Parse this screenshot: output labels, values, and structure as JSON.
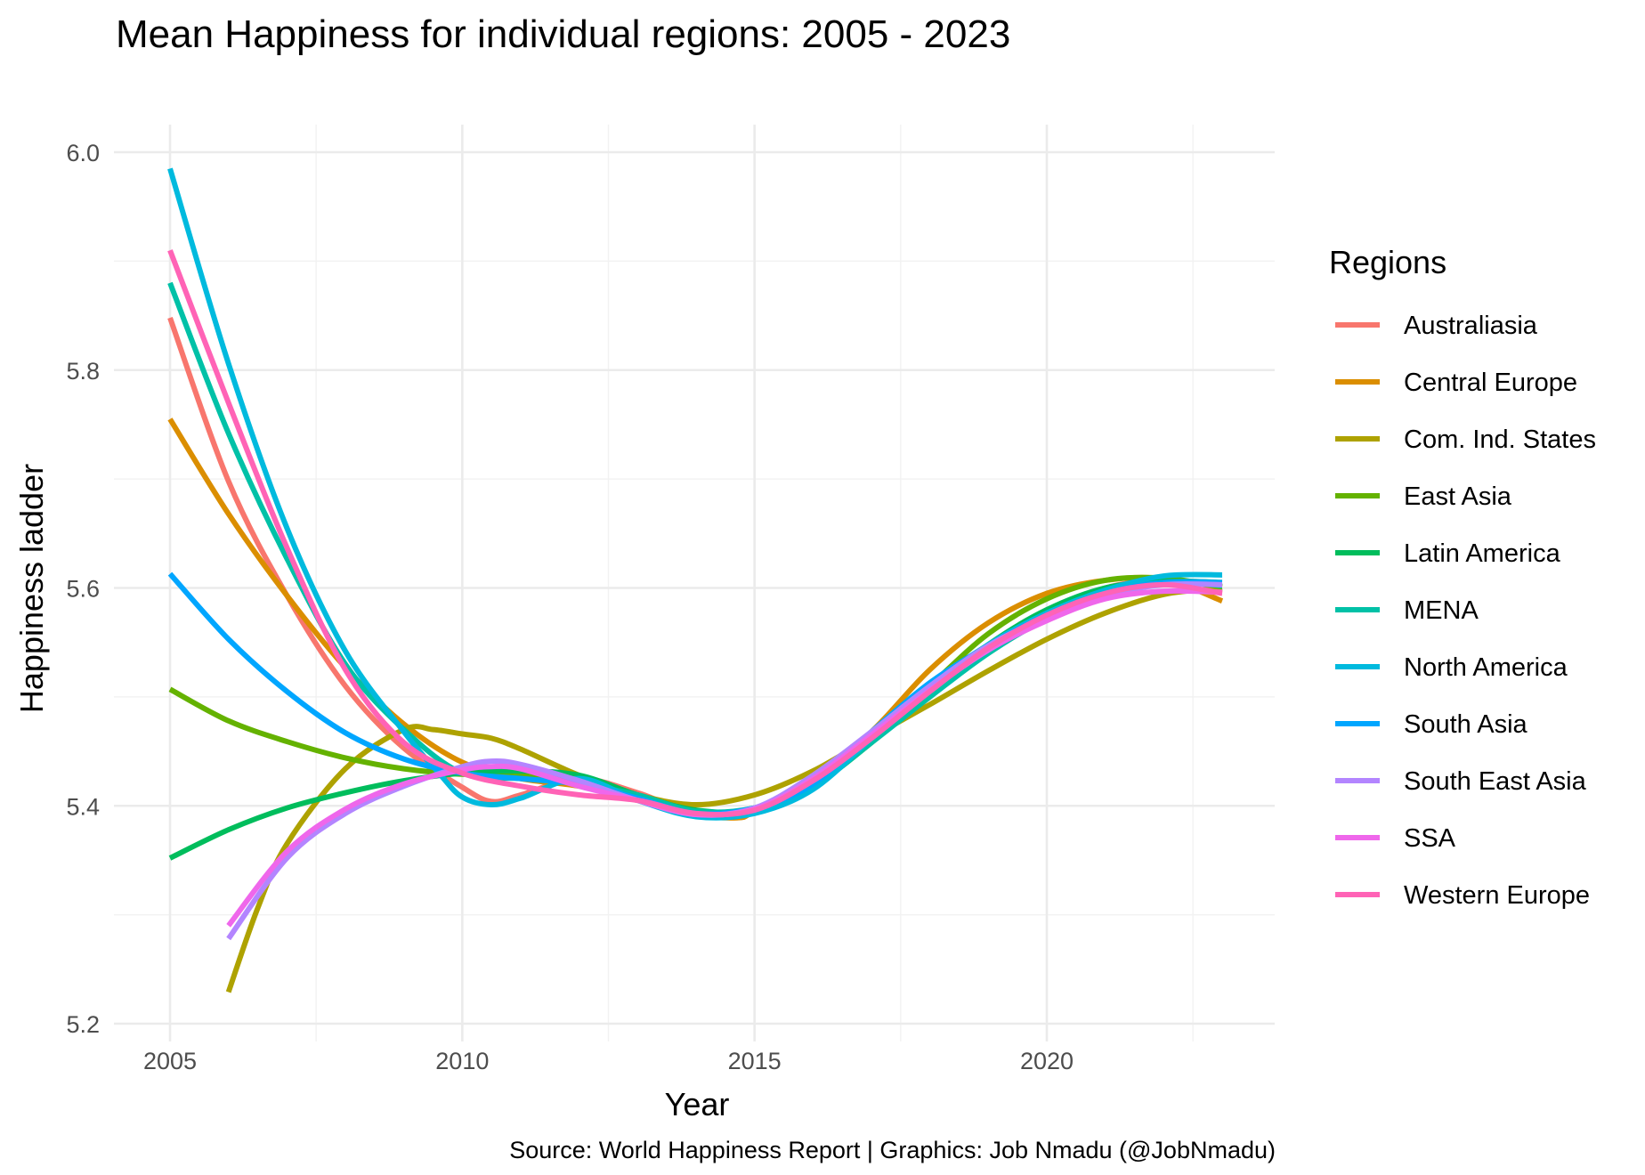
{
  "chart_data": {
    "type": "line",
    "title": "Mean Happiness for individual regions: 2005 - 2023",
    "xlabel": "Year",
    "ylabel": "Happiness ladder",
    "caption": "Source: World Happiness Report  |  Graphics: Job Nmadu (@JobNmadu)",
    "legend_title": "Regions",
    "legend_position": "right",
    "grid": true,
    "xlim": [
      2004.8,
      2023.3
    ],
    "ylim": [
      5.2,
      6.03
    ],
    "x_ticks": [
      2005,
      2010,
      2015,
      2020
    ],
    "y_ticks": [
      5.2,
      5.4,
      5.6,
      5.8,
      6.0
    ],
    "y_tick_labels": [
      "5.2",
      "5.4",
      "5.6",
      "5.8",
      "6.0"
    ],
    "series": [
      {
        "name": "Australiasia",
        "color": "#F8766D",
        "x": [
          2005,
          2006,
          2007,
          2008,
          2009,
          2010,
          2010.5,
          2011,
          2012,
          2013,
          2014,
          2015,
          2016,
          2017,
          2018,
          2019,
          2020,
          2021,
          2022,
          2023
        ],
        "y": [
          5.848,
          5.698,
          5.593,
          5.51,
          5.453,
          5.417,
          5.404,
          5.41,
          5.425,
          5.412,
          5.393,
          5.398,
          5.42,
          5.46,
          5.5,
          5.545,
          5.578,
          5.6,
          5.607,
          5.601
        ]
      },
      {
        "name": "Central Europe",
        "color": "#DB8E00",
        "x": [
          2005,
          2006,
          2007,
          2008,
          2009,
          2010,
          2011,
          2012,
          2013,
          2014,
          2014.7,
          2015,
          2016,
          2017,
          2018,
          2019,
          2020,
          2021,
          2022,
          2023
        ],
        "y": [
          5.755,
          5.668,
          5.593,
          5.527,
          5.475,
          5.44,
          5.425,
          5.418,
          5.405,
          5.392,
          5.389,
          5.395,
          5.425,
          5.468,
          5.525,
          5.568,
          5.595,
          5.607,
          5.608,
          5.588
        ]
      },
      {
        "name": "Com. Ind. States",
        "color": "#AEA200",
        "x": [
          2006,
          2006.5,
          2007,
          2008,
          2009,
          2009.5,
          2010,
          2010.5,
          2011,
          2012,
          2013,
          2014,
          2015,
          2016,
          2017,
          2018,
          2019,
          2020,
          2021,
          2022,
          2023
        ],
        "y": [
          5.229,
          5.306,
          5.365,
          5.434,
          5.47,
          5.47,
          5.466,
          5.462,
          5.452,
          5.428,
          5.41,
          5.401,
          5.41,
          5.432,
          5.463,
          5.493,
          5.524,
          5.553,
          5.577,
          5.594,
          5.6
        ]
      },
      {
        "name": "East Asia",
        "color": "#64B200",
        "x": [
          2005,
          2006,
          2007,
          2008,
          2009,
          2010,
          2011,
          2012,
          2013,
          2014,
          2015,
          2016,
          2017,
          2018,
          2019,
          2020,
          2021,
          2022,
          2023
        ],
        "y": [
          5.507,
          5.478,
          5.459,
          5.444,
          5.434,
          5.429,
          5.428,
          5.425,
          5.408,
          5.394,
          5.395,
          5.42,
          5.46,
          5.51,
          5.558,
          5.59,
          5.607,
          5.609,
          5.601
        ]
      },
      {
        "name": "Latin America",
        "color": "#00BD5C",
        "x": [
          2005,
          2006,
          2007,
          2008,
          2009,
          2010,
          2011,
          2012,
          2013,
          2014,
          2015,
          2016,
          2017,
          2018,
          2019,
          2020,
          2021,
          2022,
          2023
        ],
        "y": [
          5.352,
          5.378,
          5.398,
          5.412,
          5.423,
          5.43,
          5.432,
          5.428,
          5.41,
          5.396,
          5.396,
          5.418,
          5.458,
          5.505,
          5.548,
          5.58,
          5.6,
          5.606,
          5.605
        ]
      },
      {
        "name": "MENA",
        "color": "#00C1A7",
        "x": [
          2005,
          2006,
          2007,
          2008,
          2009,
          2010,
          2011,
          2012,
          2013,
          2014,
          2015,
          2016,
          2017,
          2018,
          2019,
          2020,
          2021,
          2022,
          2023
        ],
        "y": [
          5.88,
          5.742,
          5.627,
          5.53,
          5.47,
          5.43,
          5.425,
          5.42,
          5.41,
          5.395,
          5.398,
          5.418,
          5.458,
          5.5,
          5.54,
          5.572,
          5.595,
          5.605,
          5.602
        ]
      },
      {
        "name": "North America",
        "color": "#00BADE",
        "x": [
          2005,
          2006,
          2007,
          2008,
          2009,
          2009.6,
          2010,
          2010.5,
          2011,
          2012,
          2013,
          2014,
          2015,
          2016,
          2017,
          2018,
          2019,
          2020,
          2021,
          2022,
          2023
        ],
        "y": [
          5.985,
          5.806,
          5.655,
          5.542,
          5.468,
          5.43,
          5.408,
          5.401,
          5.407,
          5.425,
          5.405,
          5.39,
          5.393,
          5.415,
          5.462,
          5.51,
          5.548,
          5.577,
          5.598,
          5.611,
          5.612
        ]
      },
      {
        "name": "South Asia",
        "color": "#00A6FF",
        "x": [
          2005,
          2006,
          2007,
          2008,
          2009,
          2010,
          2011,
          2012,
          2013,
          2014,
          2015,
          2016,
          2017,
          2018,
          2019,
          2020,
          2021,
          2022,
          2023
        ],
        "y": [
          5.613,
          5.553,
          5.505,
          5.467,
          5.443,
          5.43,
          5.425,
          5.42,
          5.407,
          5.393,
          5.398,
          5.42,
          5.468,
          5.513,
          5.547,
          5.575,
          5.595,
          5.605,
          5.605
        ]
      },
      {
        "name": "South East Asia",
        "color": "#B385FF",
        "x": [
          2006,
          2007,
          2008,
          2009,
          2010,
          2010.5,
          2011,
          2012,
          2013,
          2014,
          2015,
          2016,
          2017,
          2018,
          2019,
          2020,
          2021,
          2022,
          2023
        ],
        "y": [
          5.278,
          5.352,
          5.393,
          5.418,
          5.436,
          5.441,
          5.438,
          5.423,
          5.405,
          5.392,
          5.398,
          5.428,
          5.468,
          5.51,
          5.547,
          5.573,
          5.593,
          5.603,
          5.603
        ]
      },
      {
        "name": "SSA",
        "color": "#EF67EB",
        "x": [
          2006,
          2007,
          2008,
          2009,
          2010,
          2010.5,
          2011,
          2012,
          2013,
          2014,
          2015,
          2016,
          2017,
          2018,
          2019,
          2020,
          2021,
          2022,
          2023
        ],
        "y": [
          5.29,
          5.358,
          5.397,
          5.42,
          5.433,
          5.436,
          5.434,
          5.418,
          5.405,
          5.392,
          5.397,
          5.425,
          5.465,
          5.506,
          5.543,
          5.57,
          5.59,
          5.597,
          5.596
        ]
      },
      {
        "name": "Western Europe",
        "color": "#FF63B6",
        "x": [
          2005,
          2006,
          2007,
          2008,
          2009,
          2010,
          2011,
          2012,
          2013,
          2014,
          2015,
          2016,
          2017,
          2018,
          2019,
          2020,
          2021,
          2022,
          2023
        ],
        "y": [
          5.91,
          5.77,
          5.637,
          5.525,
          5.458,
          5.43,
          5.418,
          5.41,
          5.405,
          5.393,
          5.396,
          5.423,
          5.462,
          5.505,
          5.545,
          5.575,
          5.595,
          5.603,
          5.595
        ]
      }
    ]
  }
}
